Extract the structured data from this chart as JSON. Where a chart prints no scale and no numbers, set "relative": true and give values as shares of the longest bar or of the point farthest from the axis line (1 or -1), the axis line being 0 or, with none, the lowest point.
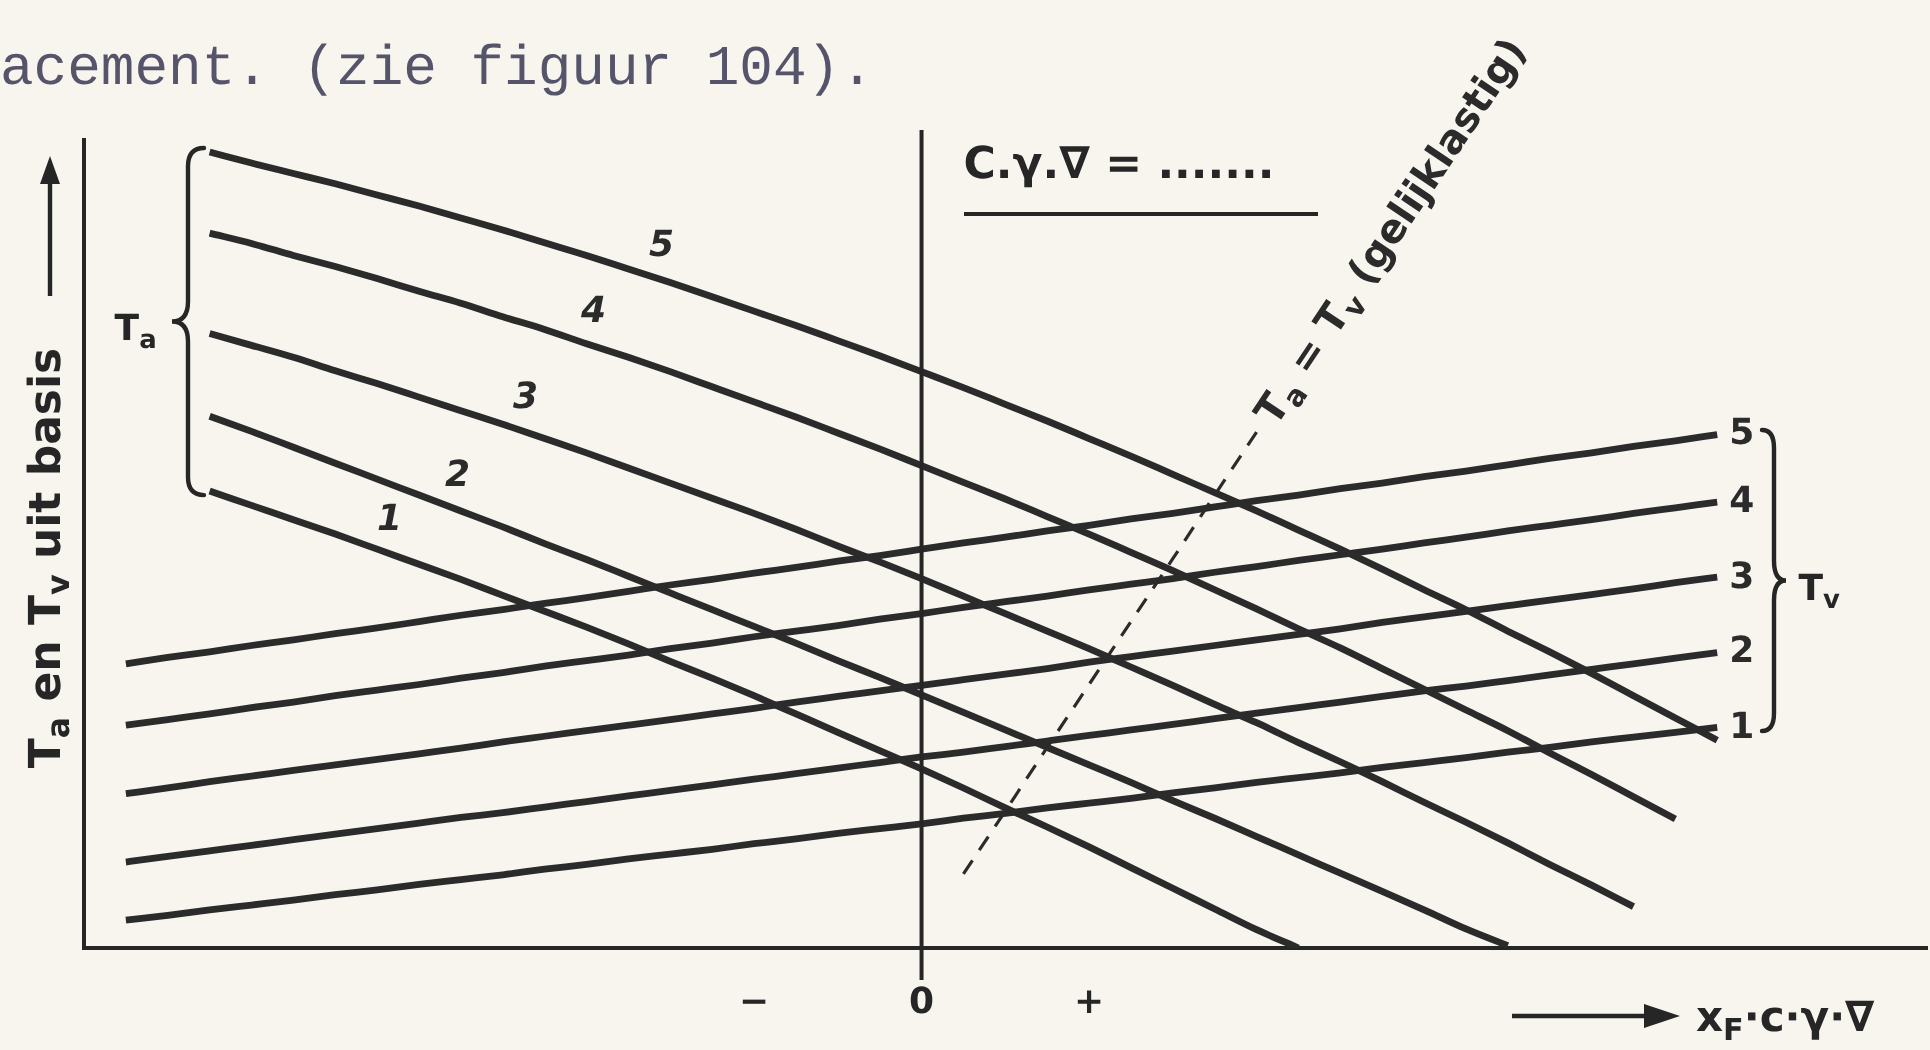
{
  "chart_data": {
    "type": "line",
    "relative": true,
    "xlabel": "x$_{F}$·c·γ·∇",
    "ylabel": "T$_{a}$ en T$_{v}$ uit basis",
    "categories": [
      null,
      null,
      null,
      null,
      null,
      null,
      null,
      null,
      null,
      null,
      null,
      null,
      null,
      null,
      null,
      null,
      "−",
      null,
      null,
      null,
      "0",
      null,
      null,
      null,
      "+",
      null,
      null,
      null,
      null,
      null,
      null,
      null,
      null,
      null,
      null,
      null,
      null,
      null,
      null,
      null,
      null,
      null,
      null,
      null,
      null
    ],
    "tick_labels": "x",
    "series": [
      {
        "name": "1",
        "color": "#2b2b2b",
        "values": [
          null,
          null,
          null,
          0.574,
          0.556,
          0.538,
          0.52,
          0.501,
          0.482,
          0.463,
          0.443,
          0.423,
          0.403,
          0.382,
          0.36,
          0.339,
          0.317,
          0.294,
          0.271,
          0.248,
          0.225,
          0.201,
          0.176,
          0.152,
          0.127,
          0.101,
          0.075,
          0.049,
          0.023,
          0,
          null,
          null,
          null,
          null,
          null,
          null,
          null,
          null,
          null,
          null,
          null,
          null,
          null,
          null,
          null
        ]
      },
      {
        "name": "2",
        "color": "#2b2b2b",
        "values": [
          null,
          null,
          null,
          0.668,
          0.649,
          0.629,
          0.609,
          0.589,
          0.569,
          0.549,
          0.529,
          0.508,
          0.488,
          0.467,
          0.446,
          0.425,
          0.404,
          0.383,
          0.361,
          0.34,
          0.318,
          0.296,
          0.274,
          0.252,
          0.23,
          0.208,
          0.185,
          0.163,
          0.14,
          0.117,
          0.094,
          0.071,
          0.048,
          0.024,
          0.003,
          null,
          null,
          null,
          null,
          null,
          null,
          null,
          null,
          null,
          null
        ]
      },
      {
        "name": "3",
        "color": "#2b2b2b",
        "values": [
          null,
          null,
          null,
          0.772,
          0.757,
          0.742,
          0.725,
          0.709,
          0.692,
          0.675,
          0.658,
          0.64,
          0.622,
          0.603,
          0.584,
          0.565,
          0.546,
          0.526,
          0.505,
          0.485,
          0.464,
          0.442,
          0.42,
          0.398,
          0.376,
          0.353,
          0.33,
          0.306,
          0.283,
          0.258,
          0.234,
          0.209,
          0.183,
          0.158,
          0.132,
          0.105,
          0.079,
          0.052,
          null,
          null,
          null,
          null,
          null,
          null,
          null
        ]
      },
      {
        "name": "4",
        "color": "#2b2b2b",
        "values": [
          null,
          null,
          null,
          0.898,
          0.885,
          0.87,
          0.856,
          0.841,
          0.825,
          0.81,
          0.793,
          0.777,
          0.759,
          0.742,
          0.724,
          0.705,
          0.686,
          0.667,
          0.647,
          0.627,
          0.606,
          0.585,
          0.564,
          0.542,
          0.52,
          0.497,
          0.474,
          0.45,
          0.426,
          0.401,
          0.377,
          0.351,
          0.325,
          0.299,
          0.273,
          0.245,
          0.218,
          0.19,
          0.162,
          null,
          null,
          null,
          null,
          null,
          null
        ]
      },
      {
        "name": "5",
        "color": "#2b2b2b",
        "values": [
          null,
          null,
          null,
          1,
          0.986,
          0.973,
          0.96,
          0.946,
          0.932,
          0.917,
          0.902,
          0.886,
          0.87,
          0.853,
          0.836,
          0.818,
          0.8,
          0.782,
          0.763,
          0.744,
          0.724,
          0.704,
          0.683,
          0.662,
          0.64,
          0.618,
          0.595,
          0.572,
          0.549,
          0.525,
          0.501,
          0.476,
          0.45,
          0.425,
          0.398,
          0.372,
          0.345,
          0.317,
          0.289,
          0.261,
          null,
          null,
          null,
          null,
          null
        ]
      },
      {
        "name": "1",
        "color": "#2b2b2b",
        "values": [
          null,
          0.035,
          0.041,
          0.048,
          0.054,
          0.06,
          0.067,
          0.073,
          0.08,
          0.086,
          0.092,
          0.099,
          0.105,
          0.112,
          0.118,
          0.124,
          0.131,
          0.137,
          0.144,
          0.15,
          0.156,
          0.163,
          0.169,
          0.176,
          0.182,
          0.188,
          0.195,
          0.201,
          0.208,
          0.214,
          0.22,
          0.227,
          0.233,
          0.239,
          0.246,
          0.252,
          0.259,
          0.265,
          0.271,
          0.277,
          null,
          null,
          null,
          null,
          null
        ]
      },
      {
        "name": "2",
        "color": "#2b2b2b",
        "values": [
          null,
          0.108,
          0.115,
          0.122,
          0.129,
          0.136,
          0.143,
          0.15,
          0.157,
          0.164,
          0.17,
          0.177,
          0.184,
          0.191,
          0.198,
          0.205,
          0.212,
          0.219,
          0.226,
          0.233,
          0.24,
          0.246,
          0.253,
          0.26,
          0.267,
          0.274,
          0.281,
          0.288,
          0.295,
          0.302,
          0.309,
          0.316,
          0.323,
          0.329,
          0.336,
          0.343,
          0.35,
          0.357,
          0.364,
          0.371,
          null,
          null,
          null,
          null,
          null
        ]
      },
      {
        "name": "3",
        "color": "#2b2b2b",
        "values": [
          null,
          0.194,
          0.201,
          0.209,
          0.216,
          0.223,
          0.23,
          0.237,
          0.244,
          0.251,
          0.259,
          0.266,
          0.273,
          0.28,
          0.287,
          0.294,
          0.301,
          0.309,
          0.316,
          0.323,
          0.33,
          0.337,
          0.344,
          0.351,
          0.359,
          0.366,
          0.373,
          0.38,
          0.387,
          0.394,
          0.401,
          0.409,
          0.416,
          0.423,
          0.43,
          0.437,
          0.444,
          0.451,
          0.459,
          0.466,
          null,
          null,
          null,
          null,
          null
        ]
      },
      {
        "name": "4",
        "color": "#2b2b2b",
        "values": [
          null,
          0.28,
          0.287,
          0.294,
          0.302,
          0.309,
          0.317,
          0.324,
          0.331,
          0.339,
          0.346,
          0.354,
          0.361,
          0.368,
          0.376,
          0.383,
          0.391,
          0.398,
          0.405,
          0.413,
          0.42,
          0.428,
          0.435,
          0.442,
          0.45,
          0.457,
          0.464,
          0.472,
          0.479,
          0.487,
          0.494,
          0.501,
          0.509,
          0.516,
          0.524,
          0.531,
          0.538,
          0.546,
          0.553,
          0.56,
          null,
          null,
          null,
          null,
          null
        ]
      },
      {
        "name": "5",
        "color": "#2b2b2b",
        "values": [
          null,
          0.357,
          0.365,
          0.372,
          0.38,
          0.387,
          0.395,
          0.402,
          0.41,
          0.418,
          0.425,
          0.433,
          0.44,
          0.448,
          0.456,
          0.463,
          0.471,
          0.478,
          0.486,
          0.493,
          0.501,
          0.509,
          0.516,
          0.524,
          0.531,
          0.539,
          0.546,
          0.554,
          0.562,
          0.569,
          0.577,
          0.584,
          0.592,
          0.599,
          0.607,
          0.615,
          0.622,
          0.63,
          0.637,
          0.645,
          null,
          null,
          null,
          null,
          null
        ]
      },
      {
        "name": "T$_{a}$ = T$_{v}$ (gelijklastig)",
        "color": "#2b2b2b",
        "line_style": "dashed",
        "values": [
          null,
          null,
          null,
          null,
          null,
          null,
          null,
          null,
          null,
          null,
          null,
          null,
          null,
          null,
          null,
          null,
          null,
          null,
          null,
          null,
          null,
          0.093,
          0.172,
          0.252,
          0.331,
          0.41,
          0.489,
          0.569,
          0.648,
          null,
          null,
          null,
          null,
          null,
          null,
          null,
          null,
          null,
          null,
          null,
          null,
          null,
          null,
          null,
          null
        ]
      }
    ],
    "ref_lines": [
      {
        "axis": "x",
        "value": "0",
        "color": "#262626"
      }
    ],
    "annotations": [
      "acement. (zie figuur 104).",
      "C.γ.∇ = .......",
      "T$_{a}$",
      "T$_{v}$"
    ]
  }
}
